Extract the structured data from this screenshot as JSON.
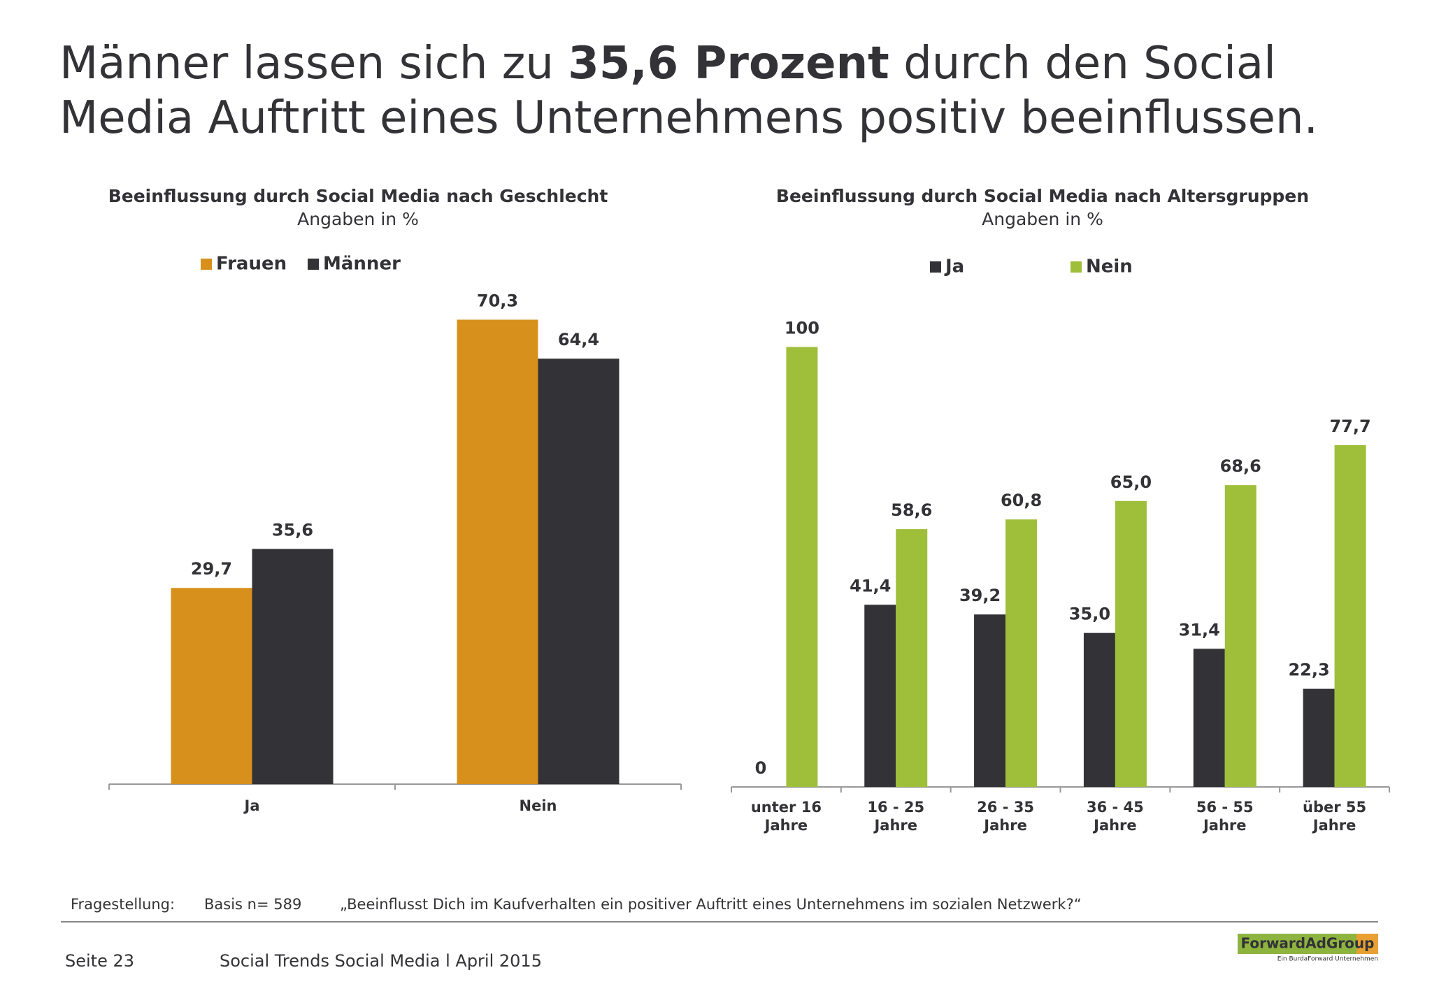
{
  "header": {
    "title": [
      "Männer lassen sich zu ",
      "35,6 Prozent",
      " durch den Social Media Auftritt eines Unternehmens positiv beeinflussen."
    ]
  },
  "chart_data": [
    {
      "type": "bar",
      "title": "Beeinflussung durch Social Media nach Geschlecht",
      "subtitle": "Angaben in %",
      "categories": [
        "Ja",
        "Nein"
      ],
      "series": [
        {
          "name": "Frauen",
          "color": "#d8901c",
          "values": [
            29.7,
            70.3
          ],
          "value_labels": [
            "29,7",
            "70,3"
          ]
        },
        {
          "name": "Männer",
          "color": "#333236",
          "values": [
            35.6,
            64.4
          ],
          "value_labels": [
            "35,6",
            "64,4"
          ]
        }
      ],
      "ylim": [
        0,
        75
      ],
      "legend": "top"
    },
    {
      "type": "bar",
      "title": "Beeinflussung durch Social Media nach Altersgruppen",
      "subtitle": "Angaben in %",
      "categories": [
        "unter 16\nJahre",
        "16 - 25\nJahre",
        "26 - 35\nJahre",
        "36 - 45\nJahre",
        "56 - 55\nJahre",
        "über 55\nJahre"
      ],
      "series": [
        {
          "name": "Ja",
          "color": "#333236",
          "values": [
            0,
            41.4,
            39.2,
            35.0,
            31.4,
            22.3
          ],
          "value_labels": [
            "0",
            "41,4",
            "39,2",
            "35,0",
            "31,4",
            "22,3"
          ]
        },
        {
          "name": "Nein",
          "color": "#9fbf3b",
          "values": [
            100,
            58.6,
            60.8,
            65.0,
            68.6,
            77.7
          ],
          "value_labels": [
            "100",
            "58,6",
            "60,8",
            "65,0",
            "68,6",
            "77,7"
          ]
        }
      ],
      "ylim": [
        0,
        105
      ],
      "legend": "top"
    }
  ],
  "footer": {
    "question_label": "Fragestellung:",
    "basis": "Basis n= 589",
    "question": "„Beeinflusst Dich im Kaufverhalten ein positiver Auftritt eines Unternehmens im sozialen Netzwerk?“",
    "page": "Seite 23",
    "source": "Social Trends Social Media l April 2015",
    "logo": "ForwardAdGroup",
    "logo_sub": "Ein BurdaForward Unternehmen"
  }
}
